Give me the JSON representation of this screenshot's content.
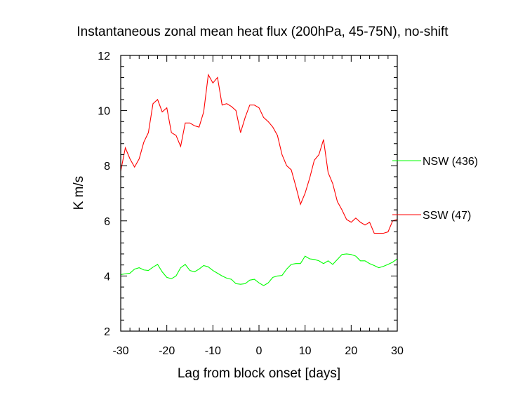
{
  "chart_data": {
    "type": "line",
    "title": "Instantaneous zonal mean heat flux (200hPa, 45-75N), no-shift",
    "xlabel": "Lag from block onset [days]",
    "ylabel": "K m/s",
    "xlim": [
      -30,
      30
    ],
    "ylim": [
      2,
      12
    ],
    "xticks": [
      -30,
      -20,
      -10,
      0,
      10,
      20,
      30
    ],
    "xtick_labels": [
      "-30",
      "-20",
      "-10",
      "0",
      "10",
      "20",
      "30"
    ],
    "yticks": [
      2,
      4,
      6,
      8,
      10,
      12
    ],
    "ytick_labels": [
      "2",
      "4",
      "6",
      "8",
      "10",
      "12"
    ],
    "grid": false,
    "legend_position": "right, outside plot",
    "x": [
      -30,
      -29,
      -28,
      -27,
      -26,
      -25,
      -24,
      -23,
      -22,
      -21,
      -20,
      -19,
      -18,
      -17,
      -16,
      -15,
      -14,
      -13,
      -12,
      -11,
      -10,
      -9,
      -8,
      -7,
      -6,
      -5,
      -4,
      -3,
      -2,
      -1,
      0,
      1,
      2,
      3,
      4,
      5,
      6,
      7,
      8,
      9,
      10,
      11,
      12,
      13,
      14,
      15,
      16,
      17,
      18,
      19,
      20,
      21,
      22,
      23,
      24,
      25,
      26,
      27,
      28,
      29,
      30
    ],
    "series": [
      {
        "name": "NSW (436)",
        "color": "#00ff00",
        "values": [
          4.05,
          4.08,
          4.1,
          4.25,
          4.3,
          4.22,
          4.2,
          4.32,
          4.42,
          4.15,
          3.95,
          3.9,
          4.0,
          4.3,
          4.42,
          4.2,
          4.15,
          4.25,
          4.38,
          4.33,
          4.2,
          4.1,
          4.0,
          3.92,
          3.88,
          3.72,
          3.7,
          3.72,
          3.85,
          3.88,
          3.75,
          3.65,
          3.75,
          3.95,
          4.0,
          4.02,
          4.25,
          4.42,
          4.45,
          4.45,
          4.72,
          4.62,
          4.6,
          4.55,
          4.45,
          4.55,
          4.42,
          4.6,
          4.78,
          4.8,
          4.78,
          4.72,
          4.55,
          4.55,
          4.45,
          4.38,
          4.3,
          4.35,
          4.42,
          4.5,
          4.62
        ]
      },
      {
        "name": "SSW (47)",
        "color": "#ff0000",
        "values": [
          7.8,
          8.65,
          8.25,
          7.95,
          8.25,
          8.85,
          9.2,
          10.25,
          10.4,
          9.95,
          10.1,
          9.2,
          9.1,
          8.7,
          9.55,
          9.55,
          9.45,
          9.4,
          9.95,
          11.3,
          11.0,
          11.2,
          10.2,
          10.25,
          10.15,
          10.0,
          9.2,
          9.75,
          10.2,
          10.2,
          10.1,
          9.75,
          9.6,
          9.4,
          9.1,
          8.4,
          8.0,
          7.85,
          7.25,
          6.6,
          7.0,
          7.55,
          8.2,
          8.4,
          8.95,
          7.75,
          7.35,
          6.7,
          6.4,
          6.05,
          5.95,
          6.1,
          5.95,
          5.85,
          5.95,
          5.55,
          5.55,
          5.55,
          5.6,
          6.0,
          6.05
        ]
      }
    ]
  }
}
